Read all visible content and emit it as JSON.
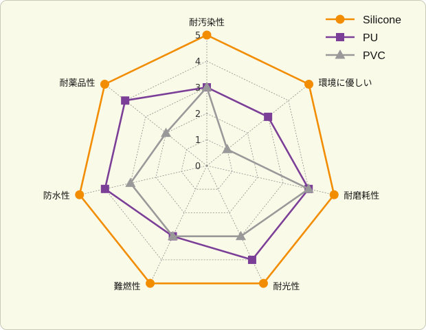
{
  "chart_data": {
    "type": "radar",
    "categories": [
      "耐汚染性",
      "環境に優しい",
      "耐磨耗性",
      "耐光性",
      "難燃性",
      "防水性",
      "耐薬品性"
    ],
    "rlim": [
      0,
      5
    ],
    "ticks": [
      "0",
      "1",
      "2",
      "3",
      "4",
      "5"
    ],
    "grid": true,
    "legend_position": "top-right",
    "series": [
      {
        "name": "Silicone",
        "values": [
          5,
          5,
          5,
          5,
          5,
          5,
          5
        ],
        "color": "#f28c00",
        "marker": "circle"
      },
      {
        "name": "PU",
        "values": [
          3,
          3,
          4,
          4,
          3,
          4,
          4
        ],
        "color": "#7b3f98",
        "marker": "square"
      },
      {
        "name": "PVC",
        "values": [
          3,
          1,
          4,
          3,
          3,
          3,
          2
        ],
        "color": "#999999",
        "marker": "triangle"
      }
    ]
  }
}
